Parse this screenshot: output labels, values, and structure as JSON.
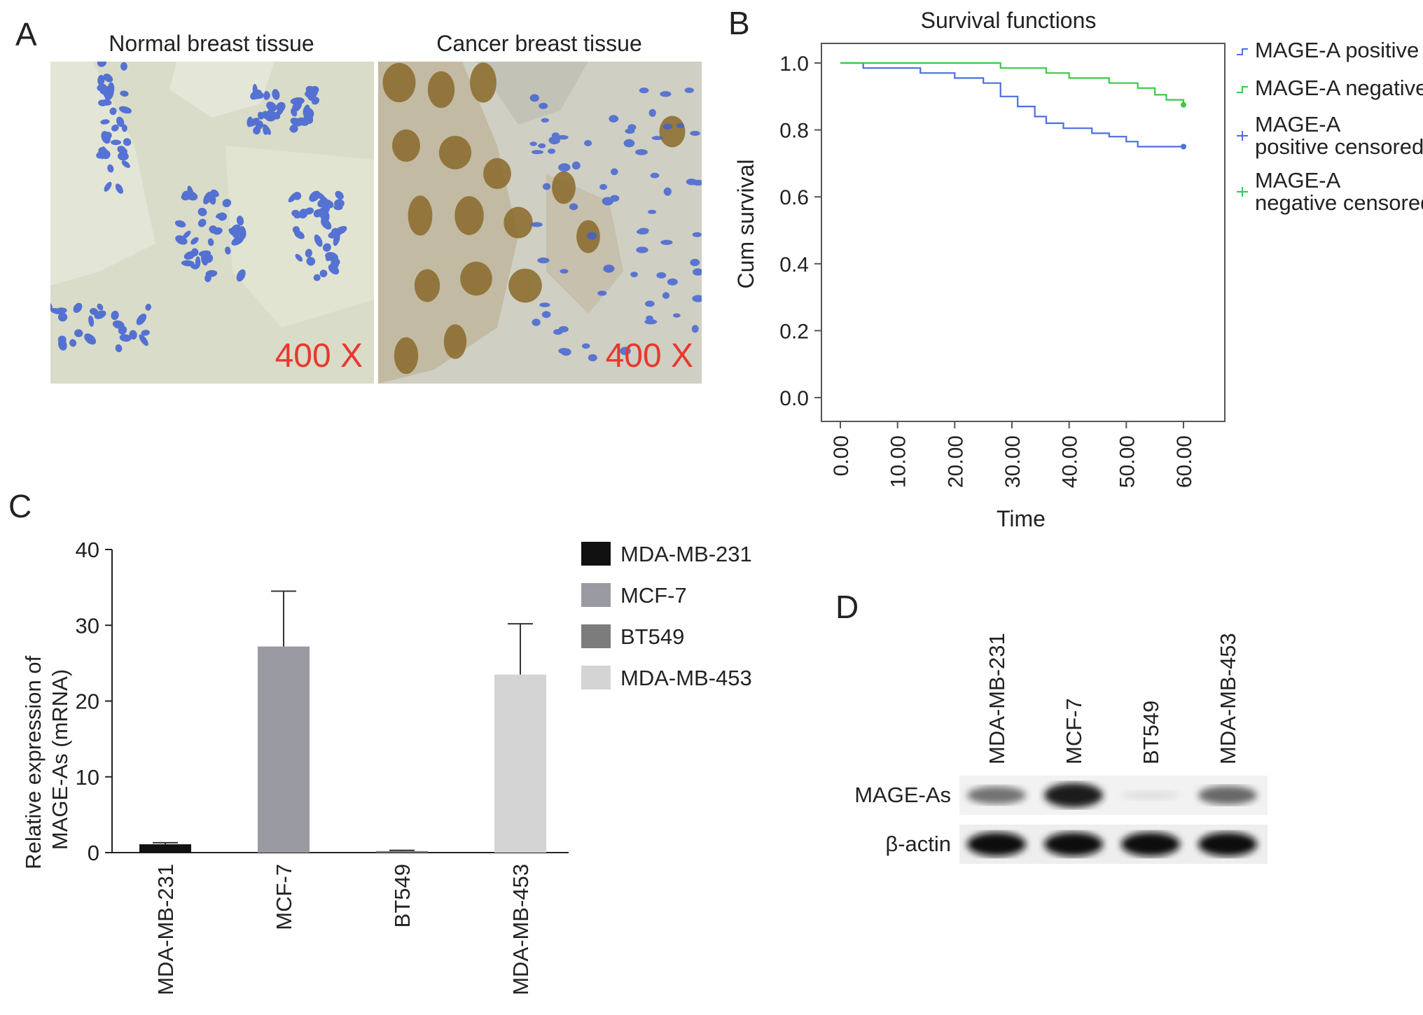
{
  "panels": {
    "a": {
      "letter": "A",
      "left_caption": "Normal breast tissue",
      "right_caption": "Cancer breast tissue",
      "magnification": "400 X"
    },
    "b": {
      "letter": "B"
    },
    "c": {
      "letter": "C"
    },
    "d": {
      "letter": "D"
    }
  },
  "colors": {
    "positive": "#4a6fe0",
    "negative": "#3cc84a",
    "normal_tissue_bg": "#d9dcc8",
    "cancer_tissue_bg": "#cfcfc4",
    "nuclei_blue": "#3d5fd4",
    "nuclei_brown": "#8a6a2a",
    "magnification_red": "#e8382e"
  },
  "chart_data": [
    {
      "type": "line",
      "panel": "B",
      "title": "Survival functions",
      "xlabel": "Time",
      "ylabel": "Cum survival",
      "xlim": [
        0,
        60
      ],
      "ylim": [
        0,
        1.0
      ],
      "x_ticks": [
        "0.00",
        "10.00",
        "20.00",
        "30.00",
        "40.00",
        "50.00",
        "60.00"
      ],
      "y_ticks": [
        "0.0",
        "0.2",
        "0.4",
        "0.6",
        "0.8",
        "1.0"
      ],
      "legend_position": "right",
      "legend": [
        "MAGE-A positive",
        "MAGE-A negative",
        "MAGE-A positive censored",
        "MAGE-A negative censored"
      ],
      "series": [
        {
          "name": "MAGE-A positive",
          "color": "#4a6fe0",
          "step": true,
          "points": [
            [
              0,
              1.0
            ],
            [
              4,
              0.985
            ],
            [
              14,
              0.97
            ],
            [
              20,
              0.955
            ],
            [
              25,
              0.94
            ],
            [
              28,
              0.9
            ],
            [
              31,
              0.87
            ],
            [
              34,
              0.84
            ],
            [
              36,
              0.82
            ],
            [
              39,
              0.805
            ],
            [
              44,
              0.79
            ],
            [
              47,
              0.78
            ],
            [
              50,
              0.765
            ],
            [
              52,
              0.75
            ],
            [
              60,
              0.75
            ]
          ]
        },
        {
          "name": "MAGE-A negative",
          "color": "#3cc84a",
          "step": true,
          "points": [
            [
              0,
              1.0
            ],
            [
              28,
              0.985
            ],
            [
              36,
              0.97
            ],
            [
              40,
              0.955
            ],
            [
              47,
              0.94
            ],
            [
              52,
              0.925
            ],
            [
              55,
              0.905
            ],
            [
              57,
              0.89
            ],
            [
              60,
              0.875
            ]
          ]
        }
      ]
    },
    {
      "type": "bar",
      "panel": "C",
      "ylabel": "Relative expression of MAGE-As (mRNA)",
      "categories": [
        "MDA-MB-231",
        "MCF-7",
        "BT549",
        "MDA-MB-453"
      ],
      "values": [
        1.1,
        27.2,
        0.2,
        23.5
      ],
      "errors": [
        0.2,
        7.3,
        0.1,
        6.7
      ],
      "colors": [
        "#111111",
        "#9a9aa2",
        "#7c7c7c",
        "#d4d4d4"
      ],
      "ylim": [
        0,
        40
      ],
      "y_ticks": [
        "0",
        "10",
        "20",
        "30",
        "40"
      ],
      "legend": [
        "MDA-MB-231",
        "MCF-7",
        "BT549",
        "MDA-MB-453"
      ],
      "legend_position": "right"
    }
  ],
  "blot": {
    "lanes": [
      "MDA-MB-231",
      "MCF-7",
      "BT549",
      "MDA-MB-453"
    ],
    "rows": [
      {
        "label": "MAGE-As",
        "intensities": [
          0.55,
          0.95,
          0.05,
          0.6
        ]
      },
      {
        "label": "β-actin",
        "intensities": [
          1.0,
          1.0,
          1.0,
          1.0
        ]
      }
    ]
  }
}
